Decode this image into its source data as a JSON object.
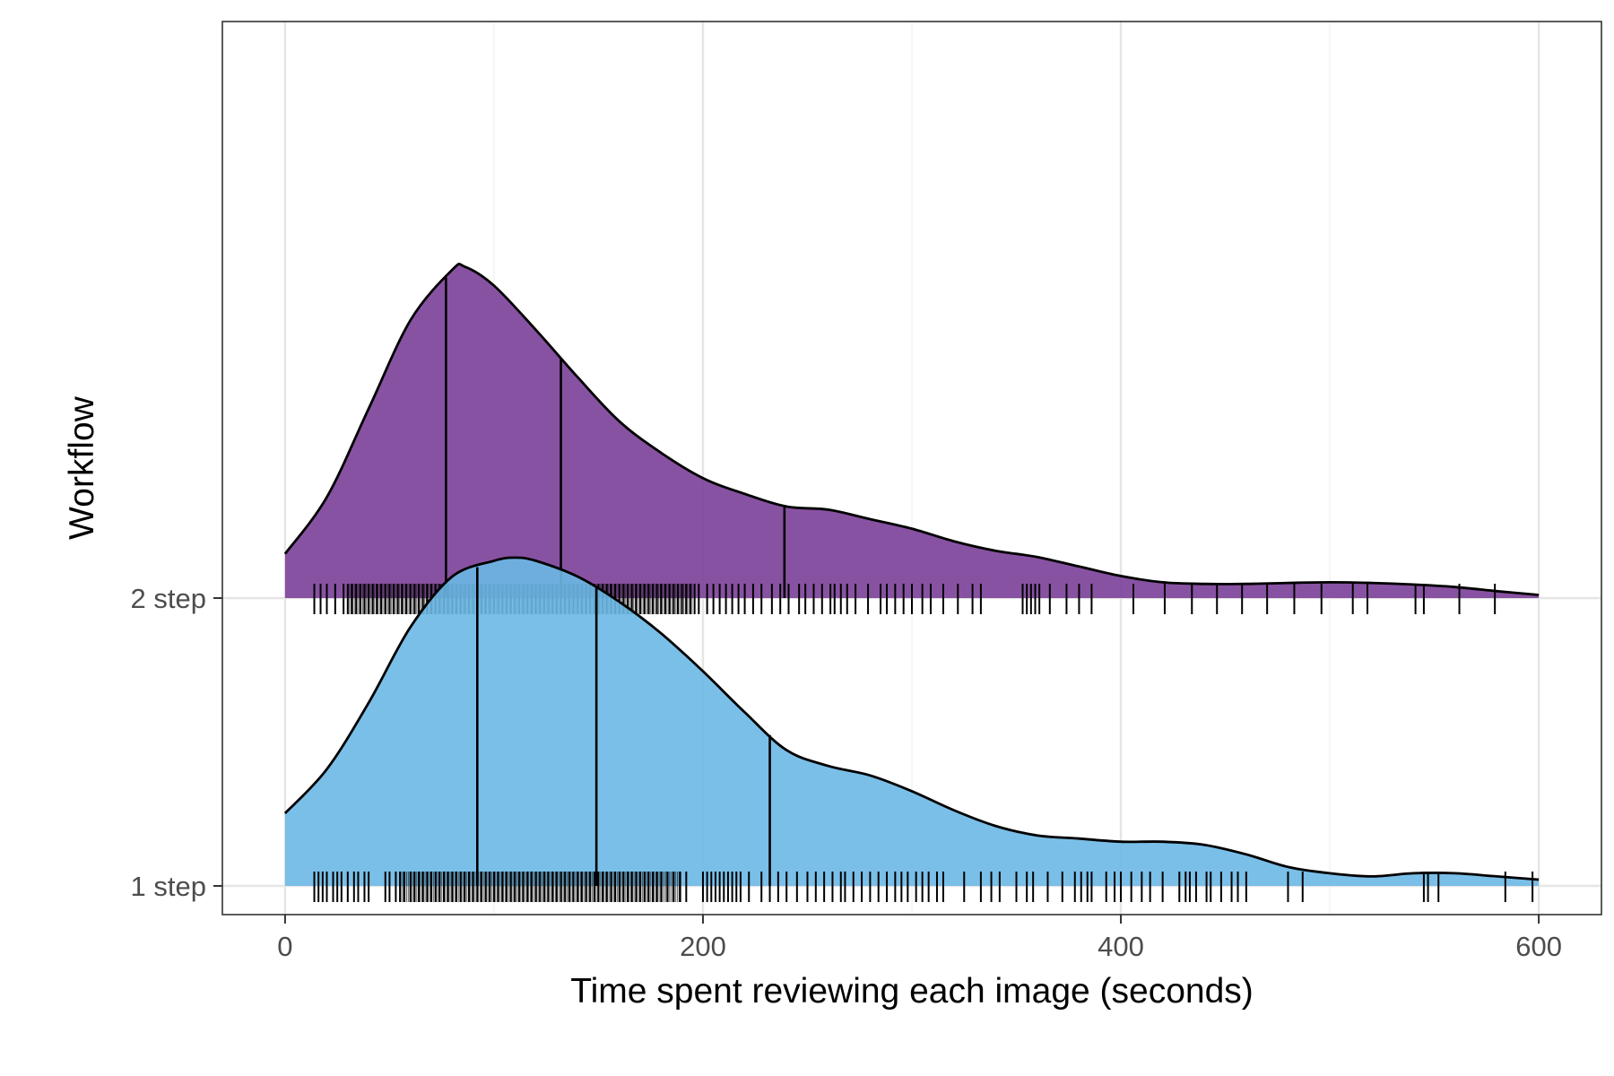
{
  "chart_data": {
    "type": "ridgeline",
    "title": "",
    "xlabel": "Time spent reviewing each image (seconds)",
    "ylabel": "Workflow",
    "xlim": [
      -30,
      630
    ],
    "xticks": [
      0,
      200,
      400,
      600
    ],
    "xtick_labels": [
      "0",
      "200",
      "400",
      "600"
    ],
    "categories": [
      "1 step",
      "2 step"
    ],
    "grid": true,
    "quantile_lines": "quartiles",
    "rug": true,
    "series": [
      {
        "name": "1 step",
        "color": "#6cb8e6",
        "quantiles": [
          92,
          149,
          232
        ],
        "density": {
          "x": [
            0,
            20,
            40,
            60,
            80,
            100,
            110,
            120,
            140,
            160,
            180,
            200,
            220,
            240,
            260,
            280,
            300,
            320,
            340,
            360,
            380,
            400,
            420,
            440,
            460,
            480,
            500,
            520,
            540,
            560,
            580,
            600
          ],
          "y": [
            0.23,
            0.37,
            0.58,
            0.82,
            0.98,
            1.03,
            1.04,
            1.03,
            0.98,
            0.9,
            0.8,
            0.68,
            0.55,
            0.43,
            0.38,
            0.35,
            0.3,
            0.24,
            0.19,
            0.16,
            0.15,
            0.14,
            0.14,
            0.13,
            0.1,
            0.06,
            0.04,
            0.03,
            0.04,
            0.04,
            0.03,
            0.02
          ]
        },
        "rug_values": [
          14,
          16,
          18,
          20,
          23,
          25,
          27,
          30,
          33,
          35,
          38,
          40,
          48,
          50,
          53,
          55,
          57,
          60,
          62,
          64,
          66,
          68,
          70,
          72,
          74,
          76,
          78,
          80,
          82,
          84,
          86,
          88,
          90,
          92,
          94,
          96,
          98,
          100,
          102,
          104,
          106,
          108,
          110,
          112,
          114,
          116,
          118,
          120,
          122,
          124,
          126,
          128,
          130,
          132,
          134,
          136,
          138,
          140,
          142,
          144,
          146,
          148,
          150,
          152,
          154,
          156,
          158,
          160,
          162,
          164,
          166,
          168,
          170,
          172,
          174,
          176,
          178,
          180,
          183,
          186,
          189,
          192,
          200,
          202,
          204,
          206,
          208,
          210,
          212,
          214,
          216,
          218,
          222,
          228,
          232,
          236,
          240,
          245,
          250,
          254,
          258,
          262,
          266,
          268,
          272,
          276,
          280,
          284,
          288,
          292,
          295,
          298,
          302,
          305,
          308,
          312,
          315,
          325,
          333,
          338,
          342,
          350,
          355,
          358,
          365,
          372,
          378,
          381,
          384,
          386,
          393,
          397,
          400,
          405,
          410,
          414,
          420,
          428,
          431,
          433,
          436,
          441,
          443,
          448,
          453,
          456,
          460,
          480,
          487,
          545,
          547,
          552,
          584,
          597
        ],
        "rug_dense_ranges": [
          [
            55,
            190
          ]
        ]
      },
      {
        "name": "2 step",
        "color": "#7b3f98",
        "quantiles": [
          77,
          132,
          239
        ],
        "density": {
          "x": [
            0,
            20,
            40,
            60,
            80,
            86,
            100,
            120,
            140,
            160,
            180,
            200,
            220,
            240,
            260,
            280,
            300,
            320,
            340,
            360,
            380,
            400,
            420,
            440,
            460,
            480,
            500,
            520,
            540,
            560,
            580,
            600
          ],
          "y": [
            0.14,
            0.32,
            0.6,
            0.88,
            1.04,
            1.05,
            0.99,
            0.85,
            0.7,
            0.56,
            0.46,
            0.38,
            0.33,
            0.29,
            0.28,
            0.25,
            0.22,
            0.18,
            0.15,
            0.13,
            0.1,
            0.07,
            0.05,
            0.045,
            0.045,
            0.048,
            0.05,
            0.048,
            0.043,
            0.035,
            0.022,
            0.01
          ]
        },
        "rug_values": [
          14,
          17,
          20,
          24,
          28,
          30,
          32,
          34,
          36,
          38,
          40,
          42,
          44,
          46,
          48,
          50,
          52,
          54,
          56,
          58,
          60,
          62,
          64,
          66,
          68,
          70,
          72,
          74,
          76,
          78,
          80,
          82,
          84,
          86,
          88,
          90,
          92,
          94,
          96,
          98,
          100,
          102,
          104,
          106,
          108,
          110,
          112,
          114,
          116,
          118,
          120,
          122,
          124,
          126,
          128,
          130,
          132,
          134,
          136,
          138,
          140,
          142,
          144,
          146,
          148,
          150,
          152,
          154,
          156,
          158,
          160,
          162,
          164,
          166,
          168,
          170,
          172,
          174,
          176,
          178,
          180,
          182,
          184,
          186,
          188,
          190,
          192,
          194,
          196,
          198,
          202,
          205,
          208,
          211,
          214,
          217,
          220,
          224,
          228,
          233,
          237,
          241,
          246,
          249,
          253,
          257,
          261,
          263,
          266,
          269,
          273,
          279,
          285,
          288,
          292,
          296,
          300,
          305,
          309,
          315,
          322,
          329,
          333,
          353,
          355,
          357,
          359,
          361,
          366,
          374,
          380,
          386,
          406,
          421,
          434,
          446,
          458,
          470,
          483,
          496,
          511,
          518,
          541,
          545,
          562,
          579
        ],
        "rug_dense_ranges": [
          [
            30,
            195
          ]
        ]
      }
    ]
  }
}
